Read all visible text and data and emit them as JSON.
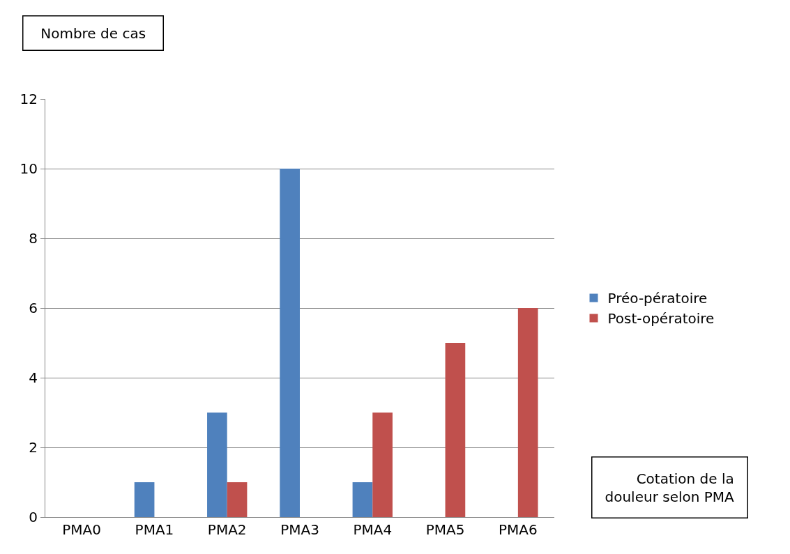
{
  "chart_data": {
    "type": "bar",
    "ylabel": "Nombre de cas",
    "xlabel": "Cotation de la douleur selon PMA",
    "categories": [
      "PMA0",
      "PMA1",
      "PMA2",
      "PMA3",
      "PMA4",
      "PMA5",
      "PMA6"
    ],
    "series": [
      {
        "name": "Préo-pératoire",
        "color": "#4f81bd",
        "values": [
          0,
          1,
          3,
          10,
          1,
          0,
          0
        ]
      },
      {
        "name": "Post-opératoire",
        "color": "#c0504d",
        "values": [
          0,
          0,
          1,
          0,
          3,
          5,
          6
        ]
      }
    ],
    "ylim": [
      0,
      12
    ],
    "yticks": [
      0,
      2,
      4,
      6,
      8,
      10,
      12
    ],
    "grid": "y",
    "legend": "right"
  }
}
